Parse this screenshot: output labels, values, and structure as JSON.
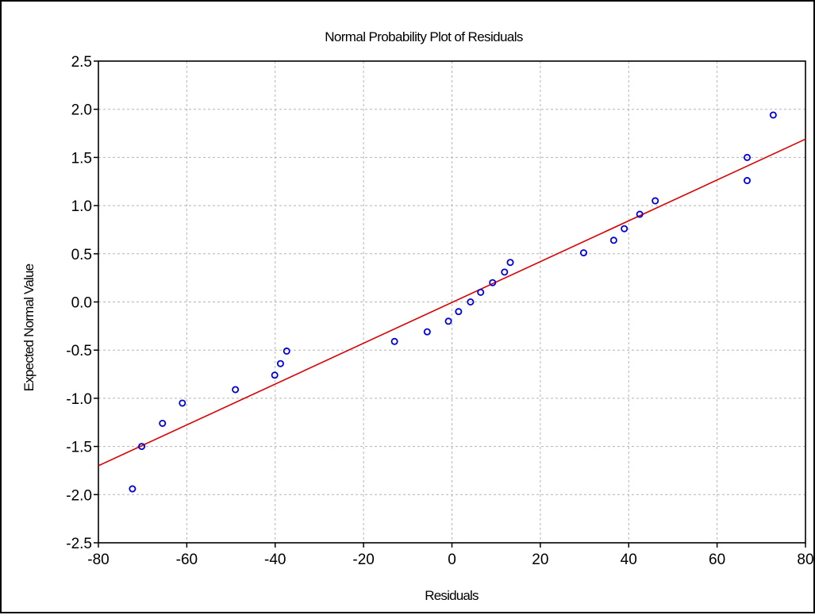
{
  "chart_data": {
    "type": "scatter",
    "title": "Normal Probability Plot of Residuals",
    "xlabel": "Residuals",
    "ylabel": "Expected Normal Value",
    "xlim": [
      -80,
      80
    ],
    "ylim": [
      -2.5,
      2.5
    ],
    "x_ticks": [
      "-80",
      "-60",
      "-40",
      "-20",
      "0",
      "20",
      "40",
      "60",
      "80"
    ],
    "y_ticks": [
      "2.5",
      "2.0",
      "1.5",
      "1.0",
      "0.5",
      "0.0",
      "-0.5",
      "-1.0",
      "-1.5",
      "-2.0",
      "-2.5"
    ],
    "grid": true,
    "points": {
      "color": "#0000dd",
      "x": [
        -72.3,
        -70.2,
        -65.5,
        -61.0,
        -49.0,
        -40.1,
        -38.8,
        -37.4,
        -13.0,
        -5.6,
        -0.8,
        1.5,
        4.2,
        6.5,
        9.2,
        11.9,
        13.2,
        29.8,
        36.6,
        39.0,
        42.5,
        46.0,
        66.8,
        66.8,
        72.7
      ],
      "y": [
        -1.94,
        -1.5,
        -1.26,
        -1.05,
        -0.91,
        -0.76,
        -0.64,
        -0.51,
        -0.41,
        -0.31,
        -0.2,
        -0.1,
        0.0,
        0.1,
        0.2,
        0.31,
        0.41,
        0.51,
        0.64,
        0.76,
        0.91,
        1.05,
        1.26,
        1.5,
        1.94
      ]
    },
    "fit_line": {
      "color": "#dd0000",
      "x": [
        -80,
        80
      ],
      "y": [
        -1.7,
        1.69
      ]
    }
  }
}
